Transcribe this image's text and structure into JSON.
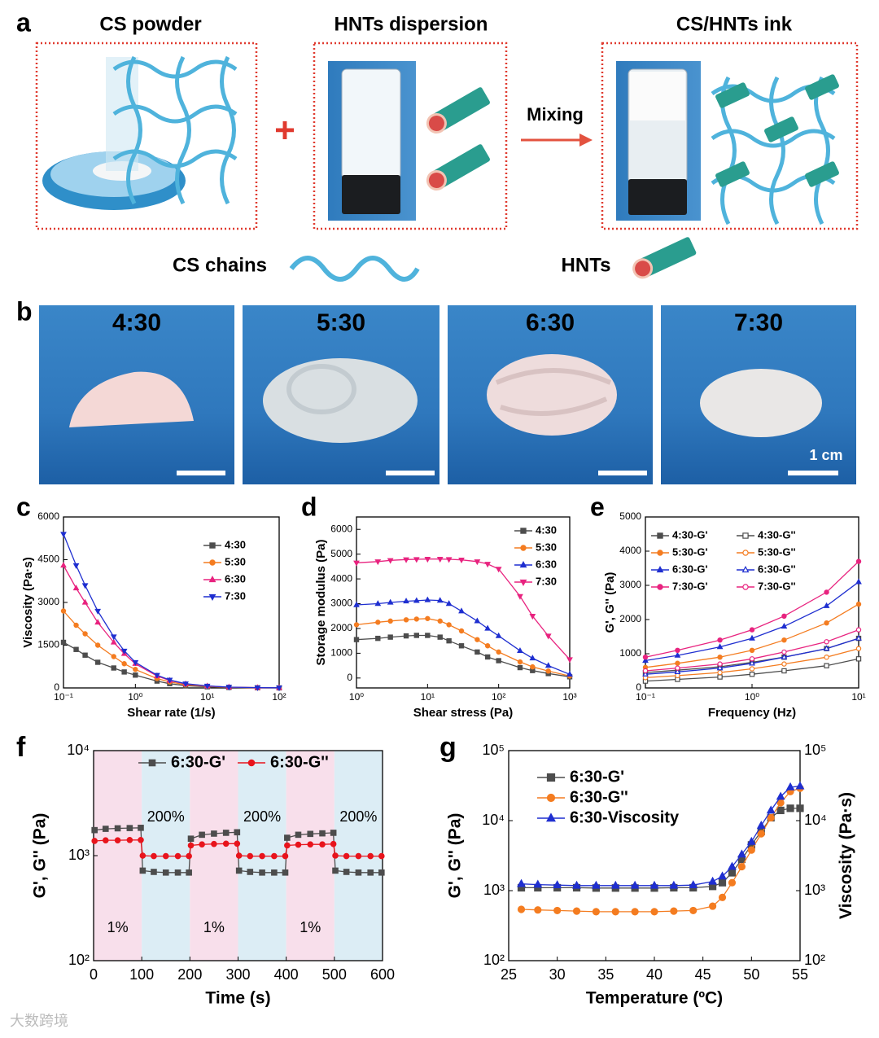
{
  "panel_a": {
    "label": "a",
    "titles": [
      "CS powder",
      "HNTs dispersion",
      "CS/HNTs ink"
    ],
    "mixing": "Mixing",
    "legend": [
      "CS chains",
      "HNTs"
    ]
  },
  "panel_b": {
    "label": "b",
    "ratios": [
      "4:30",
      "5:30",
      "6:30",
      "7:30"
    ],
    "scale_bar": "1 cm"
  },
  "watermark": "大数跨境",
  "chart_data": [
    {
      "type": "line",
      "panel": "c",
      "xlabel": "Shear rate (1/s)",
      "ylabel": "Viscosity (Pa·s)",
      "xscale": "log",
      "xlim": [
        0.1,
        100
      ],
      "xticks": [
        {
          "value": 0.1,
          "label": "10⁻¹"
        },
        {
          "value": 1,
          "label": "10⁰"
        },
        {
          "value": 10,
          "label": "10¹"
        },
        {
          "value": 100,
          "label": "10²"
        }
      ],
      "ylim": [
        0,
        6000
      ],
      "yticks": [
        0,
        1500,
        3000,
        4500,
        6000
      ],
      "x": [
        0.1,
        0.15,
        0.2,
        0.3,
        0.5,
        0.7,
        1,
        2,
        3,
        5,
        10,
        20,
        50,
        100
      ],
      "series": [
        {
          "name": "4:30",
          "color": "#4d4d4d",
          "marker": "square",
          "filled": true,
          "values": [
            1600,
            1350,
            1150,
            900,
            700,
            560,
            450,
            240,
            150,
            80,
            40,
            18,
            6,
            2
          ]
        },
        {
          "name": "5:30",
          "color": "#f47c20",
          "marker": "circle",
          "filled": true,
          "values": [
            2700,
            2200,
            1900,
            1500,
            1100,
            850,
            650,
            330,
            210,
            110,
            55,
            24,
            8,
            3
          ]
        },
        {
          "name": "6:30",
          "color": "#e8237f",
          "marker": "triangle",
          "filled": true,
          "values": [
            4300,
            3500,
            3000,
            2300,
            1600,
            1200,
            850,
            420,
            260,
            140,
            65,
            28,
            9,
            4
          ]
        },
        {
          "name": "7:30",
          "color": "#1f2fd0",
          "marker": "triangle-down",
          "filled": true,
          "values": [
            5400,
            4300,
            3600,
            2700,
            1800,
            1300,
            900,
            450,
            280,
            150,
            70,
            30,
            10,
            5
          ]
        }
      ]
    },
    {
      "type": "line",
      "panel": "d",
      "xlabel": "Shear stress (Pa)",
      "ylabel": "Storage modulus (Pa)",
      "xscale": "log",
      "xlim": [
        1,
        1000
      ],
      "xticks": [
        {
          "value": 1,
          "label": "10⁰"
        },
        {
          "value": 10,
          "label": "10¹"
        },
        {
          "value": 100,
          "label": "10²"
        },
        {
          "value": 1000,
          "label": "10³"
        }
      ],
      "ylim": [
        -400,
        6500
      ],
      "yticks": [
        0,
        1000,
        2000,
        3000,
        4000,
        5000,
        6000
      ],
      "x": [
        1,
        2,
        3,
        5,
        7,
        10,
        15,
        20,
        30,
        50,
        70,
        100,
        200,
        300,
        500,
        1000
      ],
      "series": [
        {
          "name": "4:30",
          "color": "#4d4d4d",
          "marker": "square",
          "filled": true,
          "values": [
            1550,
            1600,
            1650,
            1700,
            1720,
            1720,
            1650,
            1500,
            1300,
            1050,
            850,
            700,
            420,
            300,
            180,
            50
          ]
        },
        {
          "name": "5:30",
          "color": "#f47c20",
          "marker": "circle",
          "filled": true,
          "values": [
            2150,
            2250,
            2300,
            2350,
            2380,
            2400,
            2300,
            2150,
            1900,
            1550,
            1300,
            1050,
            650,
            450,
            280,
            80
          ]
        },
        {
          "name": "6:30",
          "color": "#1f2fd0",
          "marker": "triangle",
          "filled": true,
          "values": [
            2950,
            3000,
            3050,
            3100,
            3120,
            3150,
            3130,
            3000,
            2700,
            2300,
            2000,
            1700,
            1100,
            800,
            500,
            150
          ]
        },
        {
          "name": "7:30",
          "color": "#e8237f",
          "marker": "triangle-down",
          "filled": true,
          "values": [
            4650,
            4700,
            4750,
            4780,
            4790,
            4800,
            4800,
            4790,
            4770,
            4700,
            4600,
            4400,
            3300,
            2500,
            1700,
            750
          ]
        }
      ]
    },
    {
      "type": "line",
      "panel": "e",
      "xlabel": "Frequency (Hz)",
      "ylabel": "G', G'' (Pa)",
      "xscale": "log",
      "xlim": [
        0.1,
        10
      ],
      "xticks": [
        {
          "value": 0.1,
          "label": "10⁻¹"
        },
        {
          "value": 1,
          "label": "10⁰"
        },
        {
          "value": 10,
          "label": "10¹"
        }
      ],
      "ylim": [
        0,
        5000
      ],
      "yticks": [
        0,
        1000,
        2000,
        3000,
        4000,
        5000
      ],
      "x": [
        0.1,
        0.2,
        0.5,
        1,
        2,
        5,
        10
      ],
      "series": [
        {
          "name": "4:30-G'",
          "color": "#4d4d4d",
          "marker": "square",
          "filled": true,
          "values": [
            450,
            520,
            620,
            750,
            900,
            1150,
            1450
          ]
        },
        {
          "name": "4:30-G''",
          "color": "#4d4d4d",
          "marker": "square",
          "filled": false,
          "values": [
            200,
            250,
            320,
            400,
            500,
            650,
            850
          ]
        },
        {
          "name": "5:30-G'",
          "color": "#f47c20",
          "marker": "circle",
          "filled": true,
          "values": [
            600,
            720,
            900,
            1100,
            1400,
            1900,
            2450
          ]
        },
        {
          "name": "5:30-G''",
          "color": "#f47c20",
          "marker": "circle",
          "filled": false,
          "values": [
            300,
            360,
            450,
            560,
            700,
            900,
            1150
          ]
        },
        {
          "name": "6:30-G'",
          "color": "#1f2fd0",
          "marker": "triangle",
          "filled": true,
          "values": [
            800,
            950,
            1200,
            1450,
            1800,
            2400,
            3100
          ]
        },
        {
          "name": "6:30-G''",
          "color": "#1f2fd0",
          "marker": "triangle",
          "filled": false,
          "values": [
            400,
            470,
            580,
            720,
            900,
            1150,
            1450
          ]
        },
        {
          "name": "7:30-G'",
          "color": "#e8237f",
          "marker": "circle",
          "filled": true,
          "values": [
            900,
            1100,
            1400,
            1700,
            2100,
            2800,
            3700
          ]
        },
        {
          "name": "7:30-G''",
          "color": "#e8237f",
          "marker": "circle",
          "filled": false,
          "values": [
            500,
            580,
            700,
            850,
            1050,
            1350,
            1700
          ]
        }
      ]
    },
    {
      "type": "line",
      "panel": "f",
      "xlabel": "Time (s)",
      "ylabel": "G', G'' (Pa)",
      "yscale": "log",
      "xlim": [
        0,
        600
      ],
      "xticks": [
        0,
        100,
        200,
        300,
        400,
        500,
        600
      ],
      "ylim": [
        100,
        10000
      ],
      "yticks": [
        {
          "value": 100,
          "label": "10²"
        },
        {
          "value": 1000,
          "label": "10³"
        },
        {
          "value": 10000,
          "label": "10⁴"
        }
      ],
      "bands": [
        {
          "x0": 0,
          "x1": 100,
          "label": "1%",
          "color": "#f8dfeb"
        },
        {
          "x0": 100,
          "x1": 200,
          "label": "200%",
          "color": "#dcedf5"
        },
        {
          "x0": 200,
          "x1": 300,
          "label": "1%",
          "color": "#f8dfeb"
        },
        {
          "x0": 300,
          "x1": 400,
          "label": "200%",
          "color": "#dcedf5"
        },
        {
          "x0": 400,
          "x1": 500,
          "label": "1%",
          "color": "#f8dfeb"
        },
        {
          "x0": 500,
          "x1": 600,
          "label": "200%",
          "color": "#dcedf5"
        }
      ],
      "x": [
        2,
        25,
        50,
        75,
        98,
        102,
        125,
        150,
        175,
        198,
        202,
        225,
        250,
        275,
        298,
        302,
        325,
        350,
        375,
        398,
        402,
        425,
        450,
        475,
        498,
        502,
        525,
        550,
        575,
        598
      ],
      "series": [
        {
          "name": "6:30-G'",
          "color": "#4d4d4d",
          "marker": "square",
          "filled": true,
          "values": [
            1750,
            1800,
            1820,
            1830,
            1840,
            720,
            700,
            690,
            690,
            690,
            1450,
            1580,
            1620,
            1650,
            1670,
            720,
            700,
            690,
            690,
            690,
            1480,
            1580,
            1610,
            1630,
            1650,
            720,
            700,
            690,
            690,
            690
          ]
        },
        {
          "name": "6:30-G''",
          "color": "#e8141c",
          "marker": "circle",
          "filled": true,
          "values": [
            1380,
            1400,
            1400,
            1410,
            1410,
            1000,
            990,
            990,
            990,
            990,
            1250,
            1280,
            1290,
            1300,
            1300,
            1000,
            990,
            990,
            990,
            990,
            1250,
            1270,
            1280,
            1280,
            1290,
            1000,
            990,
            990,
            990,
            990
          ]
        }
      ]
    },
    {
      "type": "line",
      "panel": "g",
      "xlabel": "Temperature (ºC)",
      "ylabel": "G', G'' (Pa)",
      "y2label": "Viscosity (Pa·s)",
      "yscale": "log",
      "y2scale": "log",
      "xlim": [
        25,
        55
      ],
      "xticks": [
        25,
        30,
        35,
        40,
        45,
        50,
        55
      ],
      "ylim": [
        100,
        100000
      ],
      "yticks": [
        {
          "value": 100,
          "label": "10²"
        },
        {
          "value": 1000,
          "label": "10³"
        },
        {
          "value": 10000,
          "label": "10⁴"
        },
        {
          "value": 100000,
          "label": "10⁵"
        }
      ],
      "y2lim": [
        100,
        100000
      ],
      "y2ticks": [
        {
          "value": 100,
          "label": "10²"
        },
        {
          "value": 1000,
          "label": "10³"
        },
        {
          "value": 10000,
          "label": "10⁴"
        },
        {
          "value": 100000,
          "label": "10⁵"
        }
      ],
      "x": [
        26.3,
        28,
        30,
        32,
        34,
        36,
        38,
        40,
        42,
        44,
        46,
        47,
        48,
        49,
        50,
        51,
        52,
        53,
        54,
        55
      ],
      "series": [
        {
          "name": "6:30-G'",
          "color": "#4d4d4d",
          "marker": "square",
          "filled": true,
          "values": [
            1100,
            1100,
            1100,
            1100,
            1090,
            1090,
            1090,
            1090,
            1100,
            1100,
            1150,
            1300,
            1800,
            2800,
            4500,
            7000,
            11000,
            14000,
            15000,
            15000
          ]
        },
        {
          "name": "6:30-G''",
          "color": "#f47c20",
          "marker": "circle",
          "filled": true,
          "values": [
            540,
            530,
            520,
            510,
            500,
            500,
            500,
            500,
            510,
            520,
            600,
            800,
            1300,
            2200,
            3800,
            6500,
            11000,
            18000,
            26000,
            29000
          ]
        },
        {
          "name": "6:30-Viscosity",
          "color": "#1f2fd0",
          "marker": "triangle",
          "filled": true,
          "axis": "y2",
          "values": [
            1250,
            1220,
            1200,
            1180,
            1180,
            1180,
            1180,
            1180,
            1180,
            1200,
            1350,
            1600,
            2200,
            3300,
            5000,
            8500,
            14000,
            22000,
            30000,
            31000
          ]
        }
      ]
    }
  ]
}
